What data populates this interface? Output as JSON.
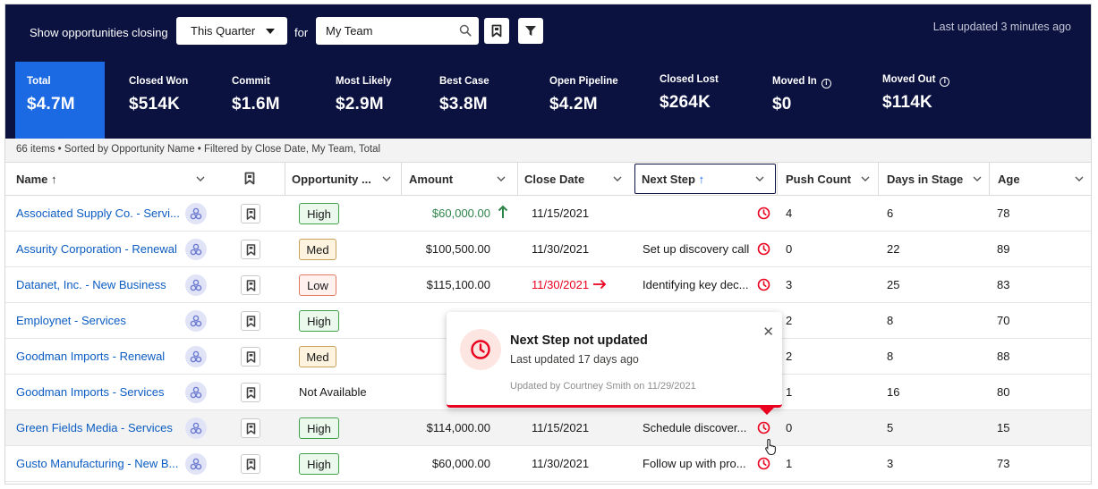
{
  "filter": {
    "show_label": "Show opportunities closing",
    "period_value": "This Quarter",
    "for_label": "for",
    "team_value": "My Team",
    "last_updated": "Last updated 3 minutes ago"
  },
  "kpis": [
    {
      "label": "Total",
      "value": "$4.7M"
    },
    {
      "label": "Closed Won",
      "value": "$514K"
    },
    {
      "label": "Commit",
      "value": "$1.6M"
    },
    {
      "label": "Most Likely",
      "value": "$2.9M"
    },
    {
      "label": "Best Case",
      "value": "$3.8M"
    },
    {
      "label": "Open Pipeline",
      "value": "$4.2M"
    },
    {
      "label": "Closed Lost",
      "value": "$264K"
    },
    {
      "label": "Moved In",
      "value": "$0"
    },
    {
      "label": "Moved Out",
      "value": "$114K"
    }
  ],
  "info_line": "66 items • Sorted by Opportunity Name • Filtered by Close Date, My Team, Total",
  "columns": {
    "name": "Name",
    "opportunity": "Opportunity ...",
    "amount": "Amount",
    "close_date": "Close Date",
    "next_step": "Next Step",
    "push_count": "Push Count",
    "days_in_stage": "Days in Stage",
    "age": "Age"
  },
  "rows": [
    {
      "name": "Associated Supply Co. - Servi...",
      "opp": "High",
      "amount": "$60,000.00",
      "close": "11/15/2021",
      "next": "",
      "push": "4",
      "days": "6",
      "age": "78"
    },
    {
      "name": "Assurity Corporation - Renewal",
      "opp": "Med",
      "amount": "$100,500.00",
      "close": "11/30/2021",
      "next": "Set up discovery call",
      "push": "0",
      "days": "22",
      "age": "89"
    },
    {
      "name": "Datanet, Inc. - New Business",
      "opp": "Low",
      "amount": "$115,100.00",
      "close": "11/30/2021",
      "next": "Identifying key dec...",
      "push": "3",
      "days": "25",
      "age": "83"
    },
    {
      "name": "Employnet - Services",
      "opp": "High",
      "amount": "$2",
      "close": "",
      "next": "",
      "push": "2",
      "days": "8",
      "age": "70"
    },
    {
      "name": "Goodman Imports - Renewal",
      "opp": "Med",
      "amount": "$9",
      "close": "",
      "next": "",
      "push": "2",
      "days": "8",
      "age": "88"
    },
    {
      "name": "Goodman Imports - Services",
      "opp": "Not Available",
      "amount": "$9",
      "close": "",
      "next": "",
      "push": "1",
      "days": "16",
      "age": "80"
    },
    {
      "name": "Green Fields Media - Services",
      "opp": "High",
      "amount": "$114,000.00",
      "close": "11/15/2021",
      "next": "Schedule discover...",
      "push": "0",
      "days": "5",
      "age": "15"
    },
    {
      "name": "Gusto Manufacturing - New B...",
      "opp": "High",
      "amount": "$60,000.00",
      "close": "11/30/2021",
      "next": "Follow up with pro...",
      "push": "1",
      "days": "3",
      "age": "73"
    }
  ],
  "popover": {
    "title": "Next Step not updated",
    "subtitle": "Last updated 17 days ago",
    "footer": "Updated by Courtney Smith on 11/29/2021"
  },
  "colors": {
    "header_bg": "#0b1240",
    "active_tile": "#1b69e3",
    "link": "#0b5cc2",
    "positive": "#2e844a",
    "alert": "#ea001e"
  },
  "icons": [
    "chevron-down-icon",
    "search-icon",
    "bookmark-icon",
    "filter-icon",
    "info-icon",
    "sort-up-icon",
    "avatar-icon",
    "clock-icon",
    "arrow-up-icon",
    "arrow-right-icon",
    "close-icon",
    "cursor-hand-icon"
  ]
}
